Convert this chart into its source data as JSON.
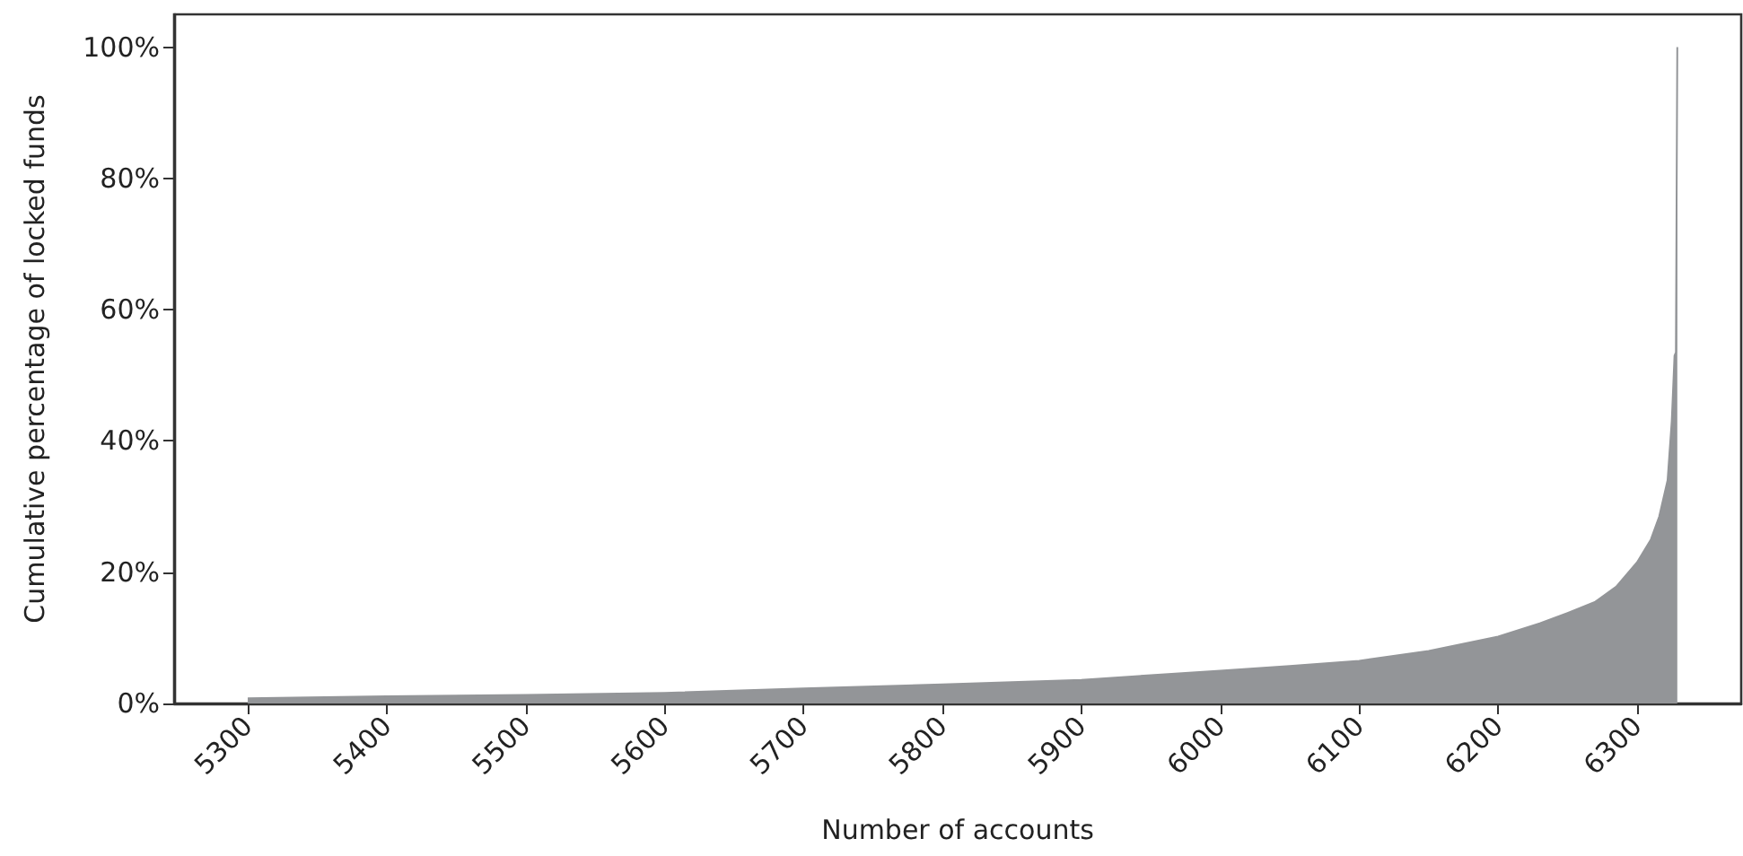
{
  "chart_data": {
    "type": "area",
    "xlabel": "Number of accounts",
    "ylabel": "Cumulative percentage of locked funds",
    "color": "#939598",
    "x": [
      5300,
      5400,
      5500,
      5600,
      5700,
      5800,
      5900,
      5950,
      6000,
      6050,
      6100,
      6150,
      6200,
      6230,
      6250,
      6270,
      6285,
      6300,
      6310,
      6316,
      6322,
      6325,
      6327,
      6328,
      6329
    ],
    "values": [
      0.8,
      1.1,
      1.3,
      1.6,
      2.3,
      2.9,
      3.6,
      4.3,
      5.0,
      5.7,
      6.5,
      8.0,
      10.2,
      12.2,
      13.8,
      15.5,
      17.8,
      21.5,
      25,
      28.5,
      34,
      43,
      53,
      53.5,
      100
    ],
    "xlim": [
      5247,
      6375
    ],
    "xticks": [
      5300,
      5400,
      5500,
      5600,
      5700,
      5800,
      5900,
      6000,
      6100,
      6200,
      6300
    ],
    "ylim": [
      0,
      105
    ],
    "yticks": [
      {
        "value": 0,
        "label": "0%"
      },
      {
        "value": 20,
        "label": "20%"
      },
      {
        "value": 40,
        "label": "40%"
      },
      {
        "value": 60,
        "label": "60%"
      },
      {
        "value": 80,
        "label": "80%"
      },
      {
        "value": 100,
        "label": "100%"
      }
    ],
    "grid": false
  }
}
